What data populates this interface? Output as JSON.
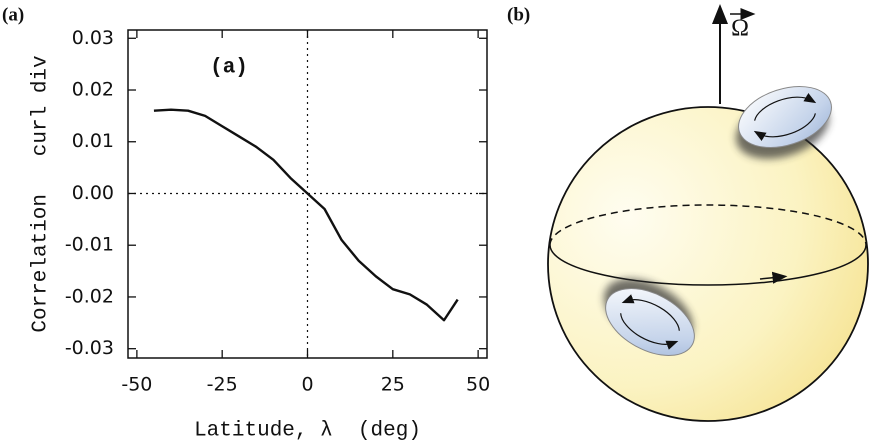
{
  "chart_data": {
    "type": "line",
    "annotation": "(a)",
    "x_label": "Latitude, λ  (deg)",
    "y_label": "Correlation   curl div",
    "x": [
      -45,
      -40,
      -35,
      -30,
      -25,
      -20,
      -15,
      -10,
      -5,
      0,
      5,
      10,
      15,
      20,
      25,
      30,
      35,
      40,
      44
    ],
    "values": [
      0.016,
      0.0162,
      0.016,
      0.015,
      0.013,
      0.011,
      0.009,
      0.0065,
      0.003,
      0.0,
      -0.003,
      -0.009,
      -0.013,
      -0.016,
      -0.0185,
      -0.0195,
      -0.0215,
      -0.0245,
      -0.0205
    ],
    "color": "#111111",
    "xlim": [
      -52.6,
      52.6
    ],
    "xticks": [
      -50,
      -25,
      0,
      25,
      50
    ],
    "ylim": [
      -0.0318,
      0.0316
    ],
    "yticks": [
      0.03,
      0.02,
      0.01,
      {
        "value": 0,
        "label": "0.00"
      },
      -0.01,
      -0.02,
      -0.03
    ]
  },
  "panels": {
    "a": "(a)",
    "b": "(b)"
  },
  "diagram": {
    "rotation_label": "Ω"
  }
}
